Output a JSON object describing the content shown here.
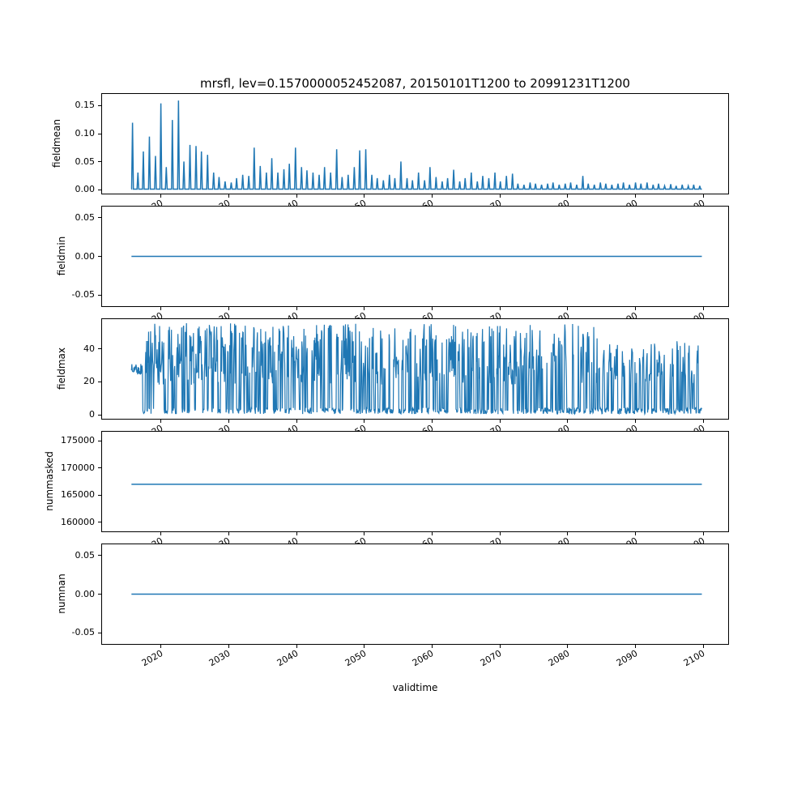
{
  "figure": {
    "title": "mrsfl, lev=0.1570000052452087, 20150101T1200 to 20991231T1200",
    "background": "#ffffff"
  },
  "chart_data": {
    "type": "line",
    "line_color": "#1f77b4",
    "grid": false,
    "legend": null,
    "x_axis": {
      "label": "validtime",
      "range": [
        2011.2,
        2103.8
      ],
      "ticks": [
        2020,
        2030,
        2040,
        2050,
        2060,
        2070,
        2080,
        2090,
        2100
      ],
      "tick_labels": [
        "2020",
        "2030",
        "2040",
        "2050",
        "2060",
        "2070",
        "2080",
        "2090",
        "2100"
      ],
      "data_start": "20150101T1200",
      "data_end": "20991231T1200"
    },
    "subplots": [
      {
        "name": "fieldmean",
        "ylabel": "fieldmean",
        "ylim": [
          -0.008,
          0.172
        ],
        "yticks": [
          0,
          0.05,
          0.1,
          0.15
        ],
        "ytick_labels": [
          "0.00",
          "0.05",
          "0.10",
          "0.15"
        ],
        "series_type": "spikes",
        "baseline": 0.0,
        "x_start": 2015.55,
        "x_end": 2099.9,
        "spike_half_width": 0.13,
        "spikes": [
          [
            2015.7,
            0.12
          ],
          [
            2016.5,
            0.03
          ],
          [
            2017.3,
            0.068
          ],
          [
            2018.2,
            0.095
          ],
          [
            2019.1,
            0.06
          ],
          [
            2019.9,
            0.155
          ],
          [
            2020.7,
            0.04
          ],
          [
            2021.6,
            0.125
          ],
          [
            2022.5,
            0.16
          ],
          [
            2023.3,
            0.05
          ],
          [
            2024.2,
            0.08
          ],
          [
            2025.1,
            0.078
          ],
          [
            2025.9,
            0.068
          ],
          [
            2026.8,
            0.062
          ],
          [
            2027.7,
            0.03
          ],
          [
            2028.5,
            0.022
          ],
          [
            2029.4,
            0.014
          ],
          [
            2030.3,
            0.012
          ],
          [
            2031.1,
            0.02
          ],
          [
            2032.0,
            0.026
          ],
          [
            2032.9,
            0.024
          ],
          [
            2033.7,
            0.075
          ],
          [
            2034.6,
            0.042
          ],
          [
            2035.5,
            0.03
          ],
          [
            2036.3,
            0.056
          ],
          [
            2037.2,
            0.03
          ],
          [
            2038.1,
            0.036
          ],
          [
            2038.9,
            0.046
          ],
          [
            2039.8,
            0.075
          ],
          [
            2040.7,
            0.04
          ],
          [
            2041.5,
            0.034
          ],
          [
            2042.4,
            0.03
          ],
          [
            2043.3,
            0.026
          ],
          [
            2044.1,
            0.04
          ],
          [
            2045.0,
            0.03
          ],
          [
            2045.9,
            0.072
          ],
          [
            2046.7,
            0.022
          ],
          [
            2047.6,
            0.026
          ],
          [
            2048.5,
            0.04
          ],
          [
            2049.3,
            0.07
          ],
          [
            2050.2,
            0.072
          ],
          [
            2051.1,
            0.026
          ],
          [
            2051.9,
            0.02
          ],
          [
            2052.8,
            0.016
          ],
          [
            2053.7,
            0.026
          ],
          [
            2054.5,
            0.02
          ],
          [
            2055.4,
            0.05
          ],
          [
            2056.3,
            0.02
          ],
          [
            2057.1,
            0.016
          ],
          [
            2058.0,
            0.03
          ],
          [
            2058.9,
            0.016
          ],
          [
            2059.7,
            0.04
          ],
          [
            2060.6,
            0.022
          ],
          [
            2061.5,
            0.014
          ],
          [
            2062.3,
            0.02
          ],
          [
            2063.2,
            0.035
          ],
          [
            2064.1,
            0.014
          ],
          [
            2064.9,
            0.02
          ],
          [
            2065.8,
            0.03
          ],
          [
            2066.7,
            0.014
          ],
          [
            2067.5,
            0.024
          ],
          [
            2068.4,
            0.02
          ],
          [
            2069.3,
            0.03
          ],
          [
            2070.1,
            0.014
          ],
          [
            2071.0,
            0.024
          ],
          [
            2071.9,
            0.028
          ],
          [
            2072.7,
            0.01
          ],
          [
            2073.6,
            0.008
          ],
          [
            2074.5,
            0.012
          ],
          [
            2075.3,
            0.01
          ],
          [
            2076.2,
            0.008
          ],
          [
            2077.1,
            0.01
          ],
          [
            2077.9,
            0.012
          ],
          [
            2078.8,
            0.008
          ],
          [
            2079.7,
            0.01
          ],
          [
            2080.5,
            0.012
          ],
          [
            2081.4,
            0.008
          ],
          [
            2082.3,
            0.024
          ],
          [
            2083.1,
            0.01
          ],
          [
            2084.0,
            0.008
          ],
          [
            2084.9,
            0.012
          ],
          [
            2085.7,
            0.01
          ],
          [
            2086.6,
            0.008
          ],
          [
            2087.5,
            0.01
          ],
          [
            2088.3,
            0.012
          ],
          [
            2089.2,
            0.008
          ],
          [
            2090.1,
            0.012
          ],
          [
            2090.9,
            0.01
          ],
          [
            2091.8,
            0.012
          ],
          [
            2092.7,
            0.008
          ],
          [
            2093.5,
            0.01
          ],
          [
            2094.4,
            0.006
          ],
          [
            2095.3,
            0.009
          ],
          [
            2096.1,
            0.006
          ],
          [
            2097.0,
            0.008
          ],
          [
            2097.9,
            0.006
          ],
          [
            2098.7,
            0.008
          ],
          [
            2099.6,
            0.006
          ]
        ]
      },
      {
        "name": "fieldmin",
        "ylabel": "fieldmin",
        "ylim": [
          -0.0655,
          0.0655
        ],
        "yticks": [
          -0.05,
          0,
          0.05
        ],
        "ytick_labels": [
          "-0.05",
          "0.00",
          "0.05"
        ],
        "series_type": "flat",
        "value": 0.0,
        "x_start": 2015.55,
        "x_end": 2099.9
      },
      {
        "name": "fieldmax",
        "ylabel": "fieldmax",
        "ylim": [
          -2.9,
          58.5
        ],
        "yticks": [
          0,
          20,
          40
        ],
        "ytick_labels": [
          "0",
          "20",
          "40"
        ],
        "series_type": "dense",
        "seed": 20150101,
        "n_points": 1400,
        "x_start": 2015.55,
        "x_end": 2099.9,
        "intro": {
          "until": 2017.2,
          "band": [
            24,
            31
          ]
        },
        "high_range": [
          18,
          56
        ],
        "low_range": [
          0,
          4
        ],
        "high_prob_early": 0.62,
        "high_prob_mid": 0.5,
        "high_prob_late": 0.38,
        "mid_start": 2050,
        "late_start": 2075,
        "taper_start": 2085,
        "taper_factor": 0.72
      },
      {
        "name": "nummasked",
        "ylabel": "nummasked",
        "ylim": [
          158200,
          176800
        ],
        "yticks": [
          160000,
          165000,
          170000,
          175000
        ],
        "ytick_labels": [
          "160000",
          "165000",
          "170000",
          "175000"
        ],
        "series_type": "flat",
        "value": 167000,
        "x_start": 2015.55,
        "x_end": 2099.9
      },
      {
        "name": "numnan",
        "ylabel": "numnan",
        "ylim": [
          -0.0655,
          0.0655
        ],
        "yticks": [
          -0.05,
          0,
          0.05
        ],
        "ytick_labels": [
          "-0.05",
          "0.00",
          "0.05"
        ],
        "series_type": "flat",
        "value": 0.0,
        "x_start": 2015.55,
        "x_end": 2099.9
      }
    ]
  }
}
